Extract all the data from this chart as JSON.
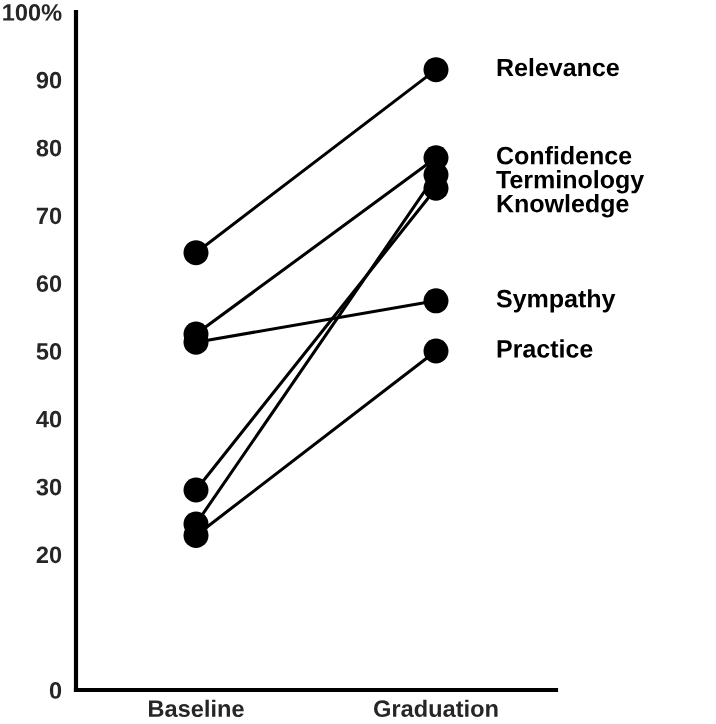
{
  "chart_data": {
    "type": "line",
    "categories": [
      "Baseline",
      "Graduation"
    ],
    "series": [
      {
        "name": "Relevance",
        "color": "#000000",
        "values": [
          64.5,
          91.5
        ]
      },
      {
        "name": "Confidence",
        "color": "#000000",
        "values": [
          52.5,
          78.5
        ]
      },
      {
        "name": "Terminology",
        "color": "#000000",
        "values": [
          24.5,
          76
        ]
      },
      {
        "name": "Knowledge",
        "color": "#000000",
        "values": [
          29.5,
          74
        ]
      },
      {
        "name": "Sympathy",
        "color": "#000000",
        "values": [
          51.3,
          57.4
        ]
      },
      {
        "name": "Practice",
        "color": "#000000",
        "values": [
          22.8,
          50
        ]
      }
    ],
    "ylim": [
      0,
      100
    ],
    "yticks": [
      0,
      20,
      30,
      40,
      50,
      60,
      70,
      80,
      90,
      {
        "value": 100,
        "label": "100%"
      }
    ],
    "marker": "circle",
    "line_style": "solid",
    "grid": false
  }
}
